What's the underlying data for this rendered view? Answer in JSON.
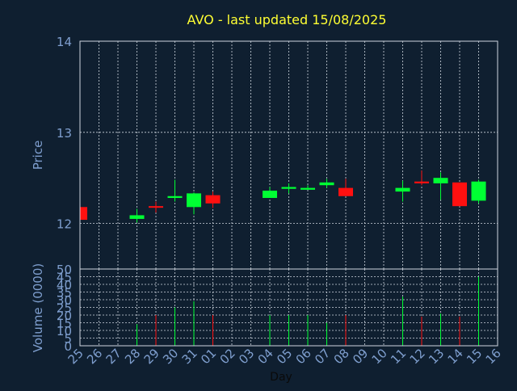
{
  "chart_data": [
    {
      "type": "candlestick",
      "title": "AVO - last updated 15/08/2025",
      "ylabel": "Price",
      "ylim": [
        11.5,
        14.0
      ],
      "yticks": [
        12,
        13,
        14
      ],
      "grid": true,
      "colors": {
        "up": "#00ff33",
        "down": "#ff1010",
        "title": "#ffff33",
        "axis_text": "#7f9fcf",
        "background": "#0f1f30"
      },
      "candles": [
        {
          "day": "25",
          "open": 12.18,
          "close": 12.04,
          "high": 12.18,
          "low": 12.04
        },
        {
          "day": "28",
          "open": 12.05,
          "close": 12.09,
          "high": 12.16,
          "low": 12.01
        },
        {
          "day": "29",
          "open": 12.19,
          "close": 12.18,
          "high": 12.24,
          "low": 12.12
        },
        {
          "day": "30",
          "open": 12.28,
          "close": 12.3,
          "high": 12.48,
          "low": 12.24
        },
        {
          "day": "31",
          "open": 12.18,
          "close": 12.33,
          "high": 12.34,
          "low": 12.1
        },
        {
          "day": "01",
          "open": 12.31,
          "close": 12.22,
          "high": 12.35,
          "low": 12.17
        },
        {
          "day": "04",
          "open": 12.28,
          "close": 12.36,
          "high": 12.4,
          "low": 12.28
        },
        {
          "day": "05",
          "open": 12.38,
          "close": 12.4,
          "high": 12.44,
          "low": 12.33
        },
        {
          "day": "06",
          "open": 12.37,
          "close": 12.39,
          "high": 12.42,
          "low": 12.37
        },
        {
          "day": "07",
          "open": 12.42,
          "close": 12.45,
          "high": 12.49,
          "low": 12.39
        },
        {
          "day": "08",
          "open": 12.39,
          "close": 12.3,
          "high": 12.49,
          "low": 12.3
        },
        {
          "day": "11",
          "open": 12.35,
          "close": 12.39,
          "high": 12.47,
          "low": 12.24
        },
        {
          "day": "12",
          "open": 12.46,
          "close": 12.44,
          "high": 12.58,
          "low": 12.42
        },
        {
          "day": "13",
          "open": 12.44,
          "close": 12.5,
          "high": 12.56,
          "low": 12.26
        },
        {
          "day": "14",
          "open": 12.45,
          "close": 12.19,
          "high": 12.45,
          "low": 12.19
        },
        {
          "day": "15",
          "open": 12.25,
          "close": 12.46,
          "high": 12.48,
          "low": 12.22
        }
      ]
    },
    {
      "type": "bar",
      "ylabel": "Volume (0000)",
      "xlabel": "Day",
      "ylim": [
        0,
        50
      ],
      "yticks": [
        0,
        5,
        10,
        15,
        20,
        25,
        30,
        35,
        40,
        45,
        50
      ],
      "grid": true,
      "categories": [
        "25",
        "26",
        "27",
        "28",
        "29",
        "30",
        "31",
        "01",
        "02",
        "03",
        "04",
        "05",
        "06",
        "07",
        "08",
        "09",
        "10",
        "11",
        "12",
        "13",
        "14",
        "15",
        "16"
      ],
      "values": [
        0,
        0,
        0,
        14,
        20,
        25,
        29,
        20,
        0,
        0,
        20,
        20,
        20,
        15,
        20,
        0,
        0,
        32,
        19,
        21,
        19,
        45,
        0
      ],
      "bar_colors": [
        "down",
        "none",
        "none",
        "up",
        "down",
        "up",
        "up",
        "down",
        "none",
        "none",
        "up",
        "up",
        "up",
        "up",
        "down",
        "none",
        "none",
        "up",
        "down",
        "up",
        "down",
        "up",
        "none"
      ]
    }
  ]
}
